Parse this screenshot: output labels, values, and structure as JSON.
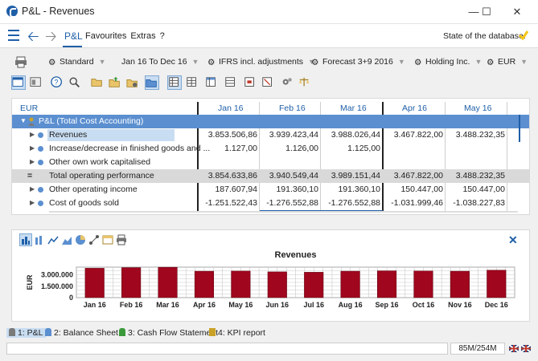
{
  "window": {
    "title": "P&L - Revenues"
  },
  "menu": {
    "active_tab": "P&L",
    "items": [
      "Favourites",
      "Extras",
      "?"
    ],
    "db_state_label": "State of the database:"
  },
  "filters": [
    {
      "label": "Standard"
    },
    {
      "label": "Jan 16 To Dec 16"
    },
    {
      "label": "IFRS incl. adjustments"
    },
    {
      "label": "Forecast 3+9 2016"
    },
    {
      "label": "Holding Inc."
    },
    {
      "label": "EUR"
    }
  ],
  "grid": {
    "corner_label": "EUR",
    "columns": [
      "Jan 16",
      "Feb 16",
      "Mar 16",
      "Apr 16",
      "May 16"
    ],
    "group_label": "P&L (Total Cost Accounting)",
    "rows": [
      {
        "label": "Revenues",
        "values": [
          "3.853.506,86",
          "3.939.423,44",
          "3.988.026,44",
          "3.467.822,00",
          "3.488.232,35"
        ]
      },
      {
        "label": "Increase/decrease in finished goods and ...",
        "values": [
          "1.127,00",
          "1.126,00",
          "1.125,00",
          "",
          ""
        ]
      },
      {
        "label": "Other own work capitalised",
        "values": [
          "",
          "",
          "",
          "",
          ""
        ]
      },
      {
        "label": "Total operating performance",
        "values": [
          "3.854.633,86",
          "3.940.549,44",
          "3.989.151,44",
          "3.467.822,00",
          "3.488.232,35"
        ]
      },
      {
        "label": "Other operating income",
        "values": [
          "187.607,94",
          "191.360,10",
          "191.360,10",
          "150.447,00",
          "150.447,00"
        ]
      },
      {
        "label": "Cost of goods sold",
        "values": [
          "-1.251.522,43",
          "-1.276.552,88",
          "-1.276.552,88",
          "-1.031.999,46",
          "-1.038.227,83"
        ]
      }
    ],
    "total_symbol": "="
  },
  "chart_data": {
    "type": "bar",
    "title": "Revenues",
    "ylabel": "EUR",
    "xlabel": "",
    "categories": [
      "Jan 16",
      "Feb 16",
      "Mar 16",
      "Apr 16",
      "May 16",
      "Jun 16",
      "Jul 16",
      "Aug 16",
      "Sep 16",
      "Oct 16",
      "Nov 16",
      "Dec 16"
    ],
    "values": [
      3853506.86,
      3939423.44,
      3988026.44,
      3467822.0,
      3488232.35,
      3380000,
      3330000,
      3470000,
      3520000,
      3500000,
      3470000,
      3600000
    ],
    "yticks": [
      "3.000.000",
      "1.500.000",
      "0"
    ],
    "ytick_values": [
      3000000,
      1500000,
      0
    ],
    "ylim": [
      0,
      4000000
    ],
    "grid": true,
    "bar_color": "#a0061d"
  },
  "bottom_tabs": [
    {
      "label": "1: P&L"
    },
    {
      "label": "2: Balance Sheet"
    },
    {
      "label": "3: Cash Flow Statement"
    },
    {
      "label": "4: KPI report"
    }
  ],
  "status": {
    "memory": "85M/254M"
  },
  "colors": {
    "accent": "#1f5fa8",
    "selection": "#c9ddf2",
    "total_row": "#d9d9d9",
    "ok": "#f5c518"
  }
}
